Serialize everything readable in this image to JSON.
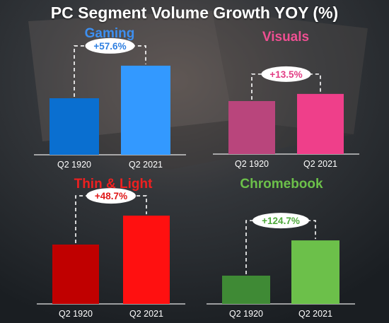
{
  "title": "PC Segment Volume Growth YOY (%)",
  "chart_data": [
    {
      "type": "bar",
      "title": "Gaming",
      "title_color": "#3d8ff0",
      "categories": [
        "Q2 1920",
        "Q2 2021"
      ],
      "values": [
        1.0,
        1.576
      ],
      "colors": [
        "#0a6fd0",
        "#3399ff"
      ],
      "annotation": "+57.6%",
      "annotation_color": "#2f7fe0"
    },
    {
      "type": "bar",
      "title": "Visuals",
      "title_color": "#ef4f92",
      "categories": [
        "Q2 1920",
        "Q2 2021"
      ],
      "values": [
        1.0,
        1.135
      ],
      "colors": [
        "#b9457c",
        "#ef3f8a"
      ],
      "annotation": "+13.5%",
      "annotation_color": "#e23c84"
    },
    {
      "type": "bar",
      "title": "Thin & Light",
      "title_color": "#ee2020",
      "categories": [
        "Q2 1920",
        "Q2 2021"
      ],
      "values": [
        1.0,
        1.487
      ],
      "colors": [
        "#c00000",
        "#ff1010"
      ],
      "annotation": "+48.7%",
      "annotation_color": "#e01818"
    },
    {
      "type": "bar",
      "title": "Chromebook",
      "title_color": "#6cc04a",
      "categories": [
        "Q2 1920",
        "Q2 2021"
      ],
      "values": [
        1.0,
        2.247
      ],
      "colors": [
        "#3f8a35",
        "#6cc04a"
      ],
      "annotation": "+124.7%",
      "annotation_color": "#4ea83a"
    }
  ]
}
